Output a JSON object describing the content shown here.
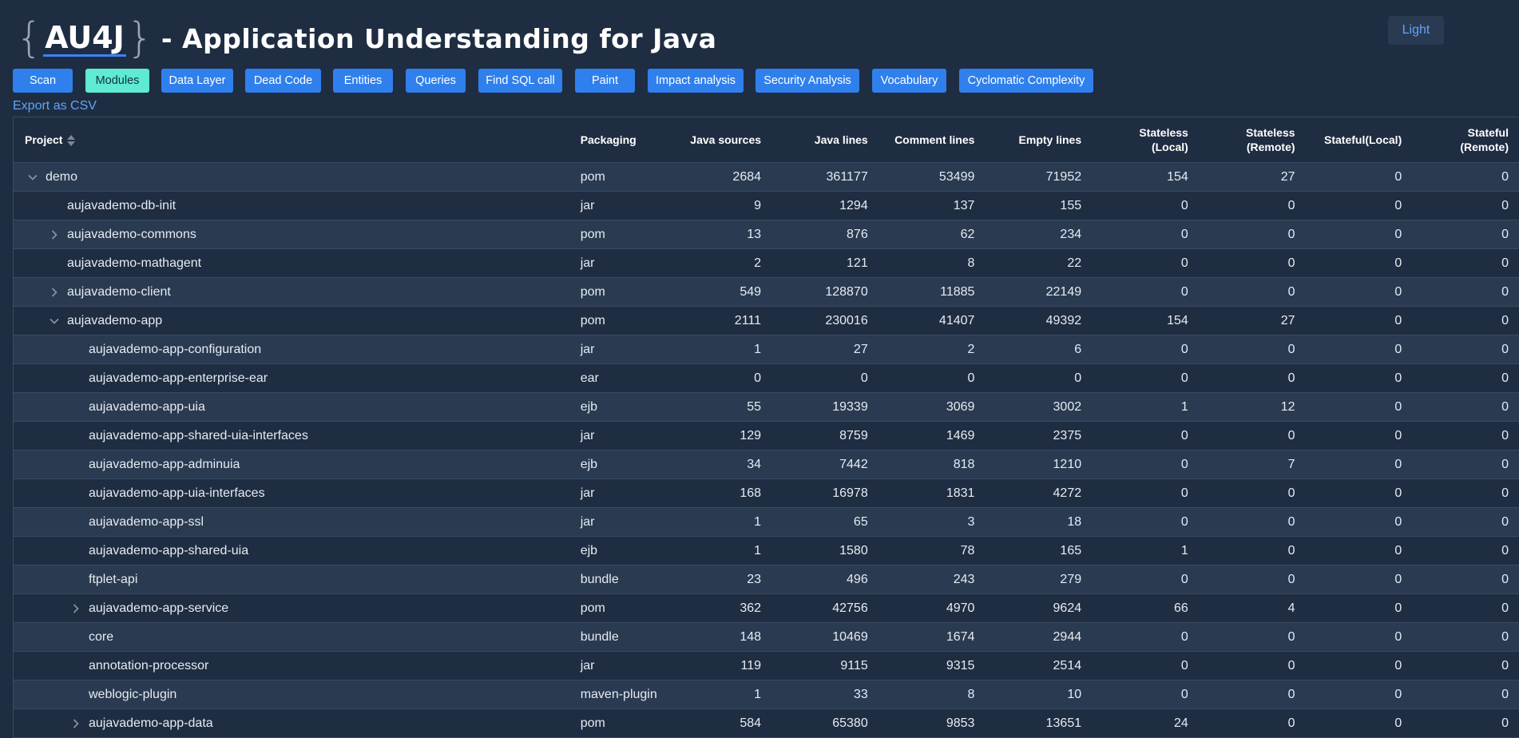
{
  "header": {
    "brace_open": "{",
    "logo_text": "AU4J",
    "brace_close": "}",
    "title": "- Application Understanding for Java",
    "theme_button": "Light"
  },
  "toolbar": {
    "buttons": [
      {
        "label": "Scan",
        "active": false
      },
      {
        "label": "Modules",
        "active": true
      },
      {
        "label": "Data Layer",
        "active": false
      },
      {
        "label": "Dead Code",
        "active": false
      },
      {
        "label": "Entities",
        "active": false
      },
      {
        "label": "Queries",
        "active": false
      },
      {
        "label": "Find SQL call",
        "active": false
      },
      {
        "label": "Paint",
        "active": false
      },
      {
        "label": "Impact analysis",
        "active": false
      },
      {
        "label": "Security Analysis",
        "active": false
      },
      {
        "label": "Vocabulary",
        "active": false
      },
      {
        "label": "Cyclomatic Complexity",
        "active": false
      }
    ]
  },
  "export_link": "Export as CSV",
  "table": {
    "columns": [
      {
        "line1": "Project",
        "line2": ""
      },
      {
        "line1": "Packaging",
        "line2": ""
      },
      {
        "line1": "Java sources",
        "line2": ""
      },
      {
        "line1": "Java lines",
        "line2": ""
      },
      {
        "line1": "Comment lines",
        "line2": ""
      },
      {
        "line1": "Empty lines",
        "line2": ""
      },
      {
        "line1": "Stateless",
        "line2": "(Local)"
      },
      {
        "line1": "Stateless",
        "line2": "(Remote)"
      },
      {
        "line1": "Stateful(Local)",
        "line2": ""
      },
      {
        "line1": "Stateful",
        "line2": "(Remote)"
      }
    ],
    "rows": [
      {
        "name": "demo",
        "depth": 0,
        "expand": "expanded",
        "packaging": "pom",
        "java_sources": "2684",
        "java_lines": "361177",
        "comment_lines": "53499",
        "empty_lines": "71952",
        "stateless_local": "154",
        "stateless_remote": "27",
        "stateful_local": "0",
        "stateful_remote": "0"
      },
      {
        "name": "aujavademo-db-init",
        "depth": 1,
        "expand": "none",
        "packaging": "jar",
        "java_sources": "9",
        "java_lines": "1294",
        "comment_lines": "137",
        "empty_lines": "155",
        "stateless_local": "0",
        "stateless_remote": "0",
        "stateful_local": "0",
        "stateful_remote": "0"
      },
      {
        "name": "aujavademo-commons",
        "depth": 1,
        "expand": "collapsed",
        "packaging": "pom",
        "java_sources": "13",
        "java_lines": "876",
        "comment_lines": "62",
        "empty_lines": "234",
        "stateless_local": "0",
        "stateless_remote": "0",
        "stateful_local": "0",
        "stateful_remote": "0"
      },
      {
        "name": "aujavademo-mathagent",
        "depth": 1,
        "expand": "none",
        "packaging": "jar",
        "java_sources": "2",
        "java_lines": "121",
        "comment_lines": "8",
        "empty_lines": "22",
        "stateless_local": "0",
        "stateless_remote": "0",
        "stateful_local": "0",
        "stateful_remote": "0"
      },
      {
        "name": "aujavademo-client",
        "depth": 1,
        "expand": "collapsed",
        "packaging": "pom",
        "java_sources": "549",
        "java_lines": "128870",
        "comment_lines": "11885",
        "empty_lines": "22149",
        "stateless_local": "0",
        "stateless_remote": "0",
        "stateful_local": "0",
        "stateful_remote": "0"
      },
      {
        "name": "aujavademo-app",
        "depth": 1,
        "expand": "expanded",
        "packaging": "pom",
        "java_sources": "2111",
        "java_lines": "230016",
        "comment_lines": "41407",
        "empty_lines": "49392",
        "stateless_local": "154",
        "stateless_remote": "27",
        "stateful_local": "0",
        "stateful_remote": "0"
      },
      {
        "name": "aujavademo-app-configuration",
        "depth": 2,
        "expand": "none",
        "packaging": "jar",
        "java_sources": "1",
        "java_lines": "27",
        "comment_lines": "2",
        "empty_lines": "6",
        "stateless_local": "0",
        "stateless_remote": "0",
        "stateful_local": "0",
        "stateful_remote": "0"
      },
      {
        "name": "aujavademo-app-enterprise-ear",
        "depth": 2,
        "expand": "none",
        "packaging": "ear",
        "java_sources": "0",
        "java_lines": "0",
        "comment_lines": "0",
        "empty_lines": "0",
        "stateless_local": "0",
        "stateless_remote": "0",
        "stateful_local": "0",
        "stateful_remote": "0"
      },
      {
        "name": "aujavademo-app-uia",
        "depth": 2,
        "expand": "none",
        "packaging": "ejb",
        "java_sources": "55",
        "java_lines": "19339",
        "comment_lines": "3069",
        "empty_lines": "3002",
        "stateless_local": "1",
        "stateless_remote": "12",
        "stateful_local": "0",
        "stateful_remote": "0"
      },
      {
        "name": "aujavademo-app-shared-uia-interfaces",
        "depth": 2,
        "expand": "none",
        "packaging": "jar",
        "java_sources": "129",
        "java_lines": "8759",
        "comment_lines": "1469",
        "empty_lines": "2375",
        "stateless_local": "0",
        "stateless_remote": "0",
        "stateful_local": "0",
        "stateful_remote": "0"
      },
      {
        "name": "aujavademo-app-adminuia",
        "depth": 2,
        "expand": "none",
        "packaging": "ejb",
        "java_sources": "34",
        "java_lines": "7442",
        "comment_lines": "818",
        "empty_lines": "1210",
        "stateless_local": "0",
        "stateless_remote": "7",
        "stateful_local": "0",
        "stateful_remote": "0"
      },
      {
        "name": "aujavademo-app-uia-interfaces",
        "depth": 2,
        "expand": "none",
        "packaging": "jar",
        "java_sources": "168",
        "java_lines": "16978",
        "comment_lines": "1831",
        "empty_lines": "4272",
        "stateless_local": "0",
        "stateless_remote": "0",
        "stateful_local": "0",
        "stateful_remote": "0"
      },
      {
        "name": "aujavademo-app-ssl",
        "depth": 2,
        "expand": "none",
        "packaging": "jar",
        "java_sources": "1",
        "java_lines": "65",
        "comment_lines": "3",
        "empty_lines": "18",
        "stateless_local": "0",
        "stateless_remote": "0",
        "stateful_local": "0",
        "stateful_remote": "0"
      },
      {
        "name": "aujavademo-app-shared-uia",
        "depth": 2,
        "expand": "none",
        "packaging": "ejb",
        "java_sources": "1",
        "java_lines": "1580",
        "comment_lines": "78",
        "empty_lines": "165",
        "stateless_local": "1",
        "stateless_remote": "0",
        "stateful_local": "0",
        "stateful_remote": "0"
      },
      {
        "name": "ftplet-api",
        "depth": 2,
        "expand": "none",
        "packaging": "bundle",
        "java_sources": "23",
        "java_lines": "496",
        "comment_lines": "243",
        "empty_lines": "279",
        "stateless_local": "0",
        "stateless_remote": "0",
        "stateful_local": "0",
        "stateful_remote": "0"
      },
      {
        "name": "aujavademo-app-service",
        "depth": 2,
        "expand": "collapsed",
        "packaging": "pom",
        "java_sources": "362",
        "java_lines": "42756",
        "comment_lines": "4970",
        "empty_lines": "9624",
        "stateless_local": "66",
        "stateless_remote": "4",
        "stateful_local": "0",
        "stateful_remote": "0"
      },
      {
        "name": "core",
        "depth": 2,
        "expand": "none",
        "packaging": "bundle",
        "java_sources": "148",
        "java_lines": "10469",
        "comment_lines": "1674",
        "empty_lines": "2944",
        "stateless_local": "0",
        "stateless_remote": "0",
        "stateful_local": "0",
        "stateful_remote": "0"
      },
      {
        "name": "annotation-processor",
        "depth": 2,
        "expand": "none",
        "packaging": "jar",
        "java_sources": "119",
        "java_lines": "9115",
        "comment_lines": "9315",
        "empty_lines": "2514",
        "stateless_local": "0",
        "stateless_remote": "0",
        "stateful_local": "0",
        "stateful_remote": "0"
      },
      {
        "name": "weblogic-plugin",
        "depth": 2,
        "expand": "none",
        "packaging": "maven-plugin",
        "java_sources": "1",
        "java_lines": "33",
        "comment_lines": "8",
        "empty_lines": "10",
        "stateless_local": "0",
        "stateless_remote": "0",
        "stateful_local": "0",
        "stateful_remote": "0"
      },
      {
        "name": "aujavademo-app-data",
        "depth": 2,
        "expand": "collapsed",
        "packaging": "pom",
        "java_sources": "584",
        "java_lines": "65380",
        "comment_lines": "9853",
        "empty_lines": "13651",
        "stateless_local": "24",
        "stateless_remote": "0",
        "stateful_local": "0",
        "stateful_remote": "0"
      }
    ]
  }
}
